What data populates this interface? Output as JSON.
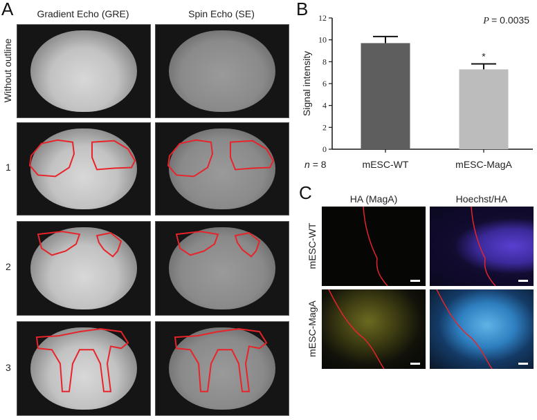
{
  "panel_a": {
    "label": "A",
    "columns": [
      "Gradient Echo (GRE)",
      "Spin Echo (SE)"
    ],
    "rows": [
      "Without outline",
      "1",
      "2",
      "3"
    ]
  },
  "panel_b": {
    "label": "B"
  },
  "panel_c": {
    "label": "C",
    "columns": [
      "HA (MagA)",
      "Hoechst/HA"
    ],
    "rows": [
      "mESC-WT",
      "mESC-MagA"
    ]
  },
  "colors": {
    "outline": "#e8232a",
    "bar_wt": "#5e5e5e",
    "bar_maga": "#bcbcbc"
  },
  "chart_data": {
    "type": "bar",
    "categories": [
      "mESC-WT",
      "mESC-MagA"
    ],
    "values": [
      9.7,
      7.3
    ],
    "errors": [
      0.6,
      0.5
    ],
    "ylabel": "Signal intensity",
    "xlabel": "",
    "ylim": [
      0,
      12
    ],
    "yticks": [
      0,
      2,
      4,
      6,
      8,
      10,
      12
    ],
    "annotations": {
      "p_label": "P",
      "p_value": "= 0.0035",
      "significance": [
        "",
        "*"
      ],
      "n_label": "n",
      "n_value": "= 8"
    },
    "grid": false
  }
}
